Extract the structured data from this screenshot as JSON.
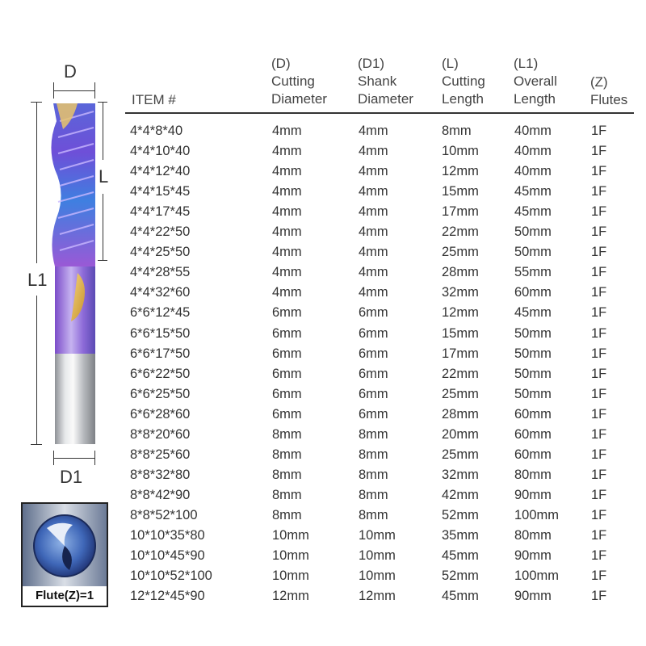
{
  "figure": {
    "label_d": "D",
    "label_l": "L",
    "label_l1": "L1",
    "label_d1": "D1",
    "flute_label": "Flute(Z)=1"
  },
  "table": {
    "headers": [
      {
        "lines": [
          "ITEM #"
        ]
      },
      {
        "lines": [
          "(D)",
          "Cutting",
          "Diameter"
        ]
      },
      {
        "lines": [
          "(D1)",
          "Shank",
          "Diameter"
        ]
      },
      {
        "lines": [
          "(L)",
          "Cutting",
          "Length"
        ]
      },
      {
        "lines": [
          "(L1)",
          "Overall",
          "Length"
        ]
      },
      {
        "lines": [
          "(Z)",
          "Flutes"
        ]
      }
    ],
    "rows": [
      [
        "4*4*8*40",
        "4mm",
        "4mm",
        "8mm",
        "40mm",
        "1F"
      ],
      [
        "4*4*10*40",
        "4mm",
        "4mm",
        "10mm",
        "40mm",
        "1F"
      ],
      [
        "4*4*12*40",
        "4mm",
        "4mm",
        "12mm",
        "40mm",
        "1F"
      ],
      [
        "4*4*15*45",
        "4mm",
        "4mm",
        "15mm",
        "45mm",
        "1F"
      ],
      [
        "4*4*17*45",
        "4mm",
        "4mm",
        "17mm",
        "45mm",
        "1F"
      ],
      [
        "4*4*22*50",
        "4mm",
        "4mm",
        "22mm",
        "50mm",
        "1F"
      ],
      [
        "4*4*25*50",
        "4mm",
        "4mm",
        "25mm",
        "50mm",
        "1F"
      ],
      [
        "4*4*28*55",
        "4mm",
        "4mm",
        "28mm",
        "55mm",
        "1F"
      ],
      [
        "4*4*32*60",
        "4mm",
        "4mm",
        "32mm",
        "60mm",
        "1F"
      ],
      [
        "6*6*12*45",
        "6mm",
        "6mm",
        "12mm",
        "45mm",
        "1F"
      ],
      [
        "6*6*15*50",
        "6mm",
        "6mm",
        "15mm",
        "50mm",
        "1F"
      ],
      [
        "6*6*17*50",
        "6mm",
        "6mm",
        "17mm",
        "50mm",
        "1F"
      ],
      [
        "6*6*22*50",
        "6mm",
        "6mm",
        "22mm",
        "50mm",
        "1F"
      ],
      [
        "6*6*25*50",
        "6mm",
        "6mm",
        "25mm",
        "50mm",
        "1F"
      ],
      [
        "6*6*28*60",
        "6mm",
        "6mm",
        "28mm",
        "60mm",
        "1F"
      ],
      [
        "8*8*20*60",
        "8mm",
        "8mm",
        "20mm",
        "60mm",
        "1F"
      ],
      [
        "8*8*25*60",
        "8mm",
        "8mm",
        "25mm",
        "60mm",
        "1F"
      ],
      [
        "8*8*32*80",
        "8mm",
        "8mm",
        "32mm",
        "80mm",
        "1F"
      ],
      [
        "8*8*42*90",
        "8mm",
        "8mm",
        "42mm",
        "90mm",
        "1F"
      ],
      [
        "8*8*52*100",
        "8mm",
        "8mm",
        "52mm",
        "100mm",
        "1F"
      ],
      [
        "10*10*35*80",
        "10mm",
        "10mm",
        "35mm",
        "80mm",
        "1F"
      ],
      [
        "10*10*45*90",
        "10mm",
        "10mm",
        "45mm",
        "90mm",
        "1F"
      ],
      [
        "10*10*52*100",
        "10mm",
        "10mm",
        "52mm",
        "100mm",
        "1F"
      ],
      [
        "12*12*45*90",
        "12mm",
        "12mm",
        "45mm",
        "90mm",
        "1F"
      ]
    ]
  }
}
